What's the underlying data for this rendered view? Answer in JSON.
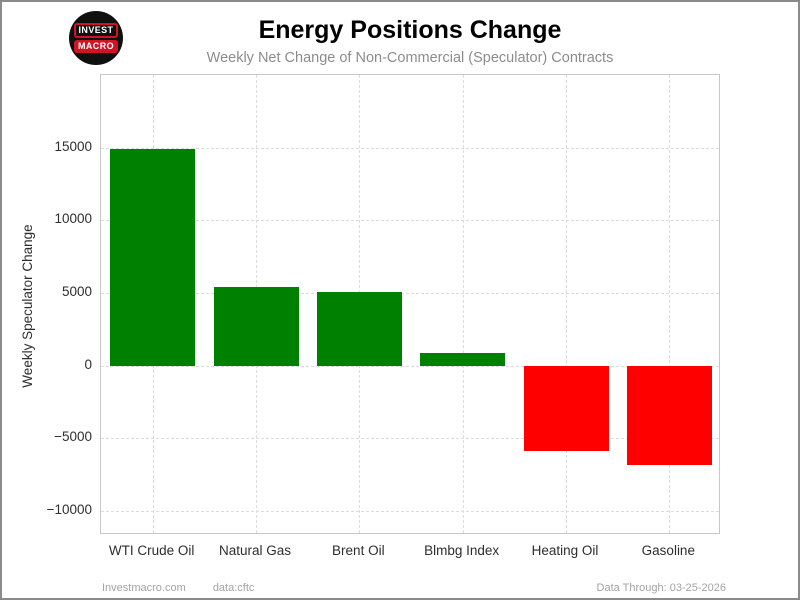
{
  "header": {
    "logo": {
      "line1": "INVEST",
      "line2": "MACRO"
    },
    "title": "Energy Positions Change",
    "subtitle": "Weekly Net Change of Non-Commercial (Speculator) Contracts"
  },
  "footer": {
    "site": "Investmacro.com",
    "source": "data:cftc",
    "data_through": "Data Through: 03-25-2026"
  },
  "chart_data": {
    "type": "bar",
    "title": "Energy Positions Change",
    "subtitle": "Weekly Net Change of Non-Commercial (Speculator) Contracts",
    "ylabel": "Weekly Speculator Change",
    "xlabel": "",
    "categories": [
      "WTI Crude Oil",
      "Natural Gas",
      "Brent Oil",
      "Blmbg Index",
      "Heating Oil",
      "Gasoline"
    ],
    "values": [
      14900,
      5400,
      5050,
      900,
      -5900,
      -6800
    ],
    "bar_colors": [
      "#008000",
      "#008000",
      "#008000",
      "#008000",
      "#ff0000",
      "#ff0000"
    ],
    "positive_color": "#008000",
    "negative_color": "#ff0000",
    "ylim": [
      -11650,
      20000
    ],
    "yticks": [
      -10000,
      -5000,
      0,
      5000,
      10000,
      15000
    ],
    "grid": "dashed",
    "legend": "none"
  }
}
